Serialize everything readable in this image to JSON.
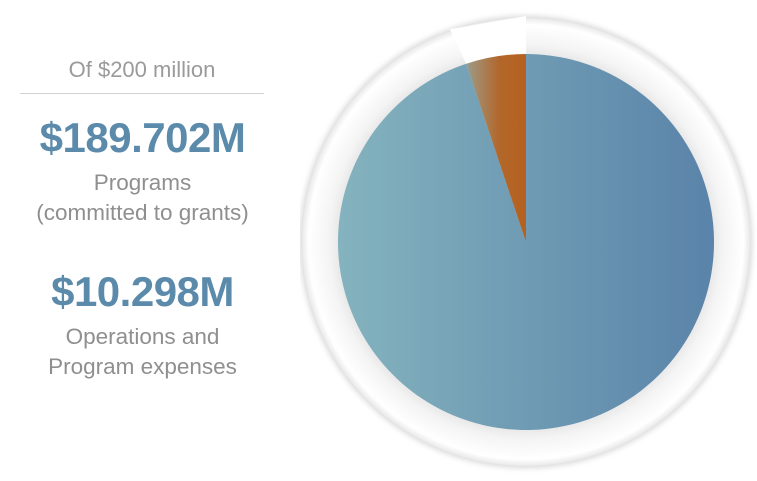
{
  "summary": {
    "subtitle": "Of $200 million",
    "programs_amount": "$189.702M",
    "programs_label_line1": "Programs",
    "programs_label_line2": "(committed to grants)",
    "operations_amount": "$10.298M",
    "operations_label_line1": "Operations and",
    "operations_label_line2": "Program expenses"
  },
  "colors": {
    "accent_text": "#5b8aab",
    "programs_slice": "#5f88ac",
    "operations_slice": "#b2672a"
  },
  "chart_data": {
    "type": "pie",
    "title": "",
    "total": 200,
    "unit": "million USD",
    "categories": [
      "Programs (committed to grants)",
      "Operations and Program expenses"
    ],
    "values": [
      189.702,
      10.298
    ],
    "slice_colors": [
      "#5f88ac",
      "#b2672a"
    ],
    "start": "12 o'clock, clockwise for Programs",
    "legend": "left"
  }
}
